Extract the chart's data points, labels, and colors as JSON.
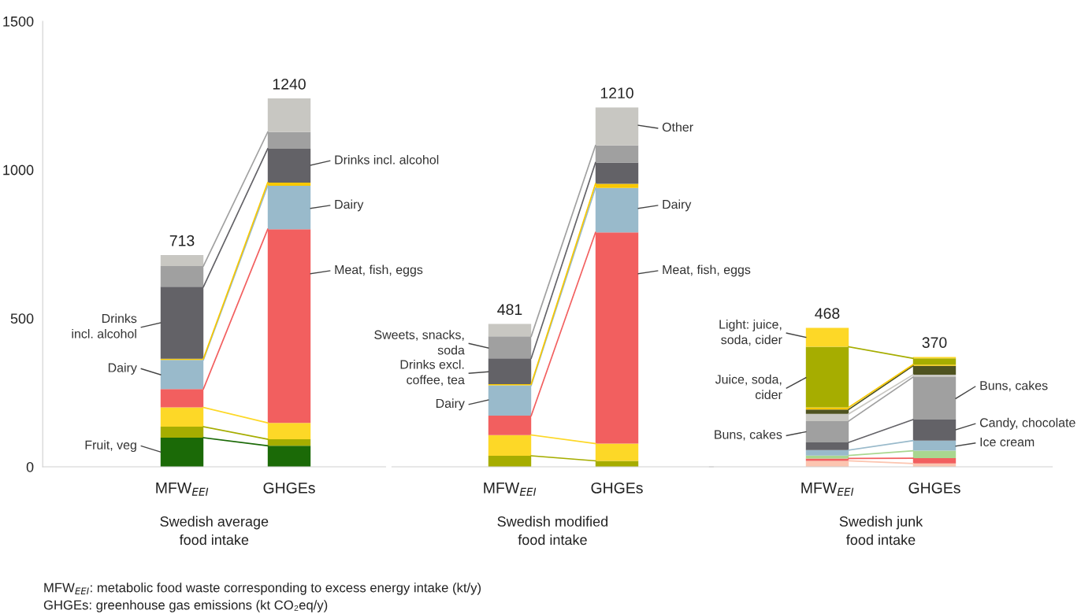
{
  "chart_data": [
    {
      "type": "bar",
      "stacked": true,
      "xlabel": "Swedish average\nfood intake",
      "categories": [
        "MFW$_{EEI}$",
        "GHGEs"
      ],
      "ylim": [
        0,
        1500
      ],
      "yticks": [
        0,
        500,
        1000,
        1500
      ],
      "tick_labels": "xy",
      "totals": [
        "713",
        "1240"
      ],
      "series": [
        {
          "color": "#1b6a07",
          "values": [
            98,
            71
          ]
        },
        {
          "color": "#a6ad00",
          "values": [
            37,
            22
          ]
        },
        {
          "color": "#fdd827",
          "values": [
            65,
            55
          ]
        },
        {
          "color": "#f25f5f",
          "values": [
            62,
            652
          ]
        },
        {
          "color": "#99bacb",
          "values": [
            98,
            146
          ]
        },
        {
          "color": "#f8c800",
          "values": [
            4,
            11
          ]
        },
        {
          "color": "#636267",
          "values": [
            242,
            114
          ]
        },
        {
          "color": "#a0a0a0",
          "values": [
            70,
            56
          ]
        },
        {
          "color": "#c8c7c2",
          "values": [
            37,
            113
          ]
        }
      ],
      "annotations": [
        "Fruit, veg",
        "Dairy",
        "Drinks\nincl. alcohol",
        "Drinks incl. alcohol",
        "Dairy",
        "Meat, fish, eggs",
        "MFW$_{EEI}$: metabolic food waste corresponding to excess energy intake (kt/y)",
        "GHGEs: greenhouse gas emissions (kt CO₂eq/y)"
      ]
    },
    {
      "type": "bar",
      "stacked": true,
      "xlabel": "Swedish modified\nfood intake",
      "categories": [
        "MFW$_{EEI}$",
        "GHGEs"
      ],
      "ylim": [
        0,
        1500
      ],
      "tick_labels": "x",
      "totals": [
        "481",
        "1210"
      ],
      "series": [
        {
          "color": "#a6ad00",
          "values": [
            37,
            20
          ]
        },
        {
          "color": "#fdd827",
          "values": [
            70,
            58
          ]
        },
        {
          "color": "#f25f5f",
          "values": [
            65,
            711
          ]
        },
        {
          "color": "#99bacb",
          "values": [
            102,
            150
          ]
        },
        {
          "color": "#f8c800",
          "values": [
            4,
            14
          ]
        },
        {
          "color": "#636267",
          "values": [
            87,
            71
          ]
        },
        {
          "color": "#a0a0a0",
          "values": [
            74,
            58
          ]
        },
        {
          "color": "#c8c7c2",
          "values": [
            42,
            128
          ]
        }
      ],
      "annotations": [
        "Dairy",
        "Drinks excl.\ncoffee, tea",
        "Sweets, snacks,\nsoda",
        "Other",
        "Dairy",
        "Meat, fish, eggs"
      ]
    },
    {
      "type": "bar",
      "stacked": true,
      "xlabel": "Swedish junk\nfood intake",
      "categories": [
        "MFW$_{EEI}$",
        "GHGEs"
      ],
      "ylim": [
        0,
        1500
      ],
      "tick_labels": "x",
      "totals": [
        "468",
        "370"
      ],
      "series": [
        {
          "color": "#fcc5b0",
          "values": [
            20,
            11
          ]
        },
        {
          "color": "#f25f5f",
          "values": [
            8,
            18
          ]
        },
        {
          "color": "#a9d68f",
          "values": [
            10,
            25
          ]
        },
        {
          "color": "#99bacb",
          "values": [
            18,
            34
          ]
        },
        {
          "color": "#636267",
          "values": [
            26,
            71
          ]
        },
        {
          "color": "#a0a0a0",
          "values": [
            72,
            143
          ]
        },
        {
          "color": "#c8c7c2",
          "values": [
            24,
            8
          ]
        },
        {
          "color": "#4f5320",
          "values": [
            15,
            30
          ]
        },
        {
          "color": "#f8c800",
          "values": [
            7,
            4
          ]
        },
        {
          "color": "#a6ad00",
          "values": [
            204,
            21
          ]
        },
        {
          "color": "#fdd827",
          "values": [
            64,
            5
          ]
        }
      ],
      "annotations": [
        "Buns, cakes",
        "Juice, soda,\ncider",
        "Light: juice,\nsoda, cider",
        "Buns, cakes",
        "Candy, chocolate",
        "Ice cream"
      ]
    }
  ]
}
